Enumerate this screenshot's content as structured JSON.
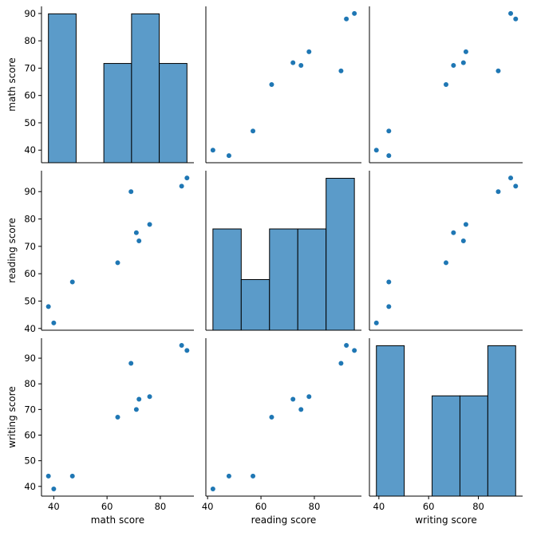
{
  "chart_data": {
    "type": "scatter",
    "variables": [
      "math score",
      "reading score",
      "writing score"
    ],
    "records": [
      {
        "math score": 38,
        "reading score": 48,
        "writing score": 44
      },
      {
        "math score": 40,
        "reading score": 42,
        "writing score": 39
      },
      {
        "math score": 47,
        "reading score": 57,
        "writing score": 44
      },
      {
        "math score": 64,
        "reading score": 64,
        "writing score": 67
      },
      {
        "math score": 69,
        "reading score": 90,
        "writing score": 88
      },
      {
        "math score": 71,
        "reading score": 75,
        "writing score": 70
      },
      {
        "math score": 72,
        "reading score": 72,
        "writing score": 74
      },
      {
        "math score": 76,
        "reading score": 78,
        "writing score": 75
      },
      {
        "math score": 88,
        "reading score": 92,
        "writing score": 95
      },
      {
        "math score": 90,
        "reading score": 95,
        "writing score": 93
      }
    ],
    "histograms": {
      "math score": {
        "bin_edges": [
          38,
          48.4,
          58.8,
          69.2,
          79.6,
          90
        ],
        "counts": [
          3,
          0,
          2,
          3,
          2
        ]
      },
      "reading score": {
        "bin_edges": [
          42,
          52.6,
          63.2,
          73.8,
          84.4,
          95
        ],
        "counts": [
          2,
          1,
          2,
          2,
          3
        ]
      },
      "writing score": {
        "bin_edges": [
          39,
          50.2,
          61.4,
          72.6,
          83.8,
          95
        ],
        "counts": [
          3,
          0,
          2,
          2,
          3
        ]
      }
    },
    "axes": {
      "math score": {
        "ylim": [
          35.4,
          92.6
        ],
        "yticks": [
          40,
          50,
          60,
          70,
          80,
          90
        ],
        "xlim": [
          35.4,
          92.6
        ],
        "xticks": [
          40,
          60,
          80
        ]
      },
      "reading score": {
        "ylim": [
          39.35,
          97.65
        ],
        "yticks": [
          40,
          50,
          60,
          70,
          80,
          90
        ],
        "xlim": [
          39.35,
          97.65
        ],
        "xticks": [
          40,
          60,
          80
        ]
      },
      "writing score": {
        "ylim": [
          36.2,
          97.8
        ],
        "yticks": [
          40,
          50,
          60,
          70,
          80,
          90
        ],
        "xlim": [
          36.2,
          97.8
        ],
        "xticks": [
          40,
          60,
          80
        ]
      }
    },
    "tick_labels": {
      "math score": [
        "40",
        "50",
        "60",
        "70",
        "80",
        "90"
      ],
      "reading score": [
        "40",
        "50",
        "60",
        "70",
        "80",
        "90"
      ],
      "writing score": [
        "40",
        "50",
        "60",
        "70",
        "80",
        "90"
      ],
      "x": [
        "40",
        "60",
        "80"
      ]
    },
    "labels": {
      "ylabels": [
        "math score",
        "reading score",
        "writing score"
      ],
      "xlabels": [
        "math score",
        "reading score",
        "writing score"
      ]
    },
    "colors": {
      "marker": "#1f77b4",
      "bar_fill": "#5b9bc9",
      "bar_edge": "#000000"
    },
    "grid": false,
    "legend": "none"
  }
}
